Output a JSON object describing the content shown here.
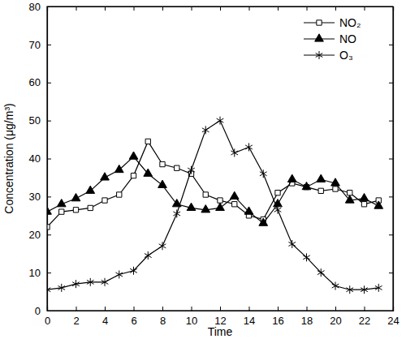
{
  "chart_data": {
    "type": "line",
    "x_label": "Time",
    "y_label": "Concentration (μg/m³)",
    "x": [
      0,
      1,
      2,
      3,
      4,
      5,
      6,
      7,
      8,
      9,
      10,
      11,
      12,
      13,
      14,
      15,
      16,
      17,
      18,
      19,
      20,
      21,
      22,
      23
    ],
    "xlim": [
      0,
      24
    ],
    "xticks": [
      0,
      2,
      4,
      6,
      8,
      10,
      12,
      14,
      16,
      18,
      20,
      22,
      24
    ],
    "ylim": [
      0,
      80
    ],
    "yticks": [
      0,
      10,
      20,
      30,
      40,
      50,
      60,
      70,
      80
    ],
    "grid": false,
    "legend": "upper right",
    "series": [
      {
        "name": "NO₂",
        "color": "#000000",
        "marker": "open-square",
        "line_style": "solid",
        "values": [
          22,
          26,
          26.5,
          27,
          29,
          30.5,
          35.5,
          44.5,
          38.5,
          37.5,
          36,
          30.5,
          29,
          28,
          25,
          24,
          31,
          33.5,
          32.5,
          31.5,
          32,
          31,
          28,
          29
        ]
      },
      {
        "name": "NO",
        "color": "#000000",
        "marker": "filled-triangle",
        "line_style": "solid",
        "values": [
          26,
          28,
          29.5,
          31.5,
          35,
          37,
          40.5,
          36,
          33,
          28,
          27,
          26.5,
          27,
          30,
          26,
          23,
          28,
          34.5,
          32.5,
          34.5,
          33.5,
          29,
          29.5,
          27.5
        ]
      },
      {
        "name": "O₃",
        "color": "#000000",
        "marker": "asterisk",
        "line_style": "solid",
        "values": [
          5.5,
          6,
          7,
          7.5,
          7.5,
          9.5,
          10.5,
          14.5,
          17,
          25.5,
          37,
          47.5,
          50,
          41.5,
          43,
          36,
          26.5,
          17.5,
          14,
          10,
          6.5,
          5.5,
          5.5,
          6
        ]
      }
    ]
  }
}
